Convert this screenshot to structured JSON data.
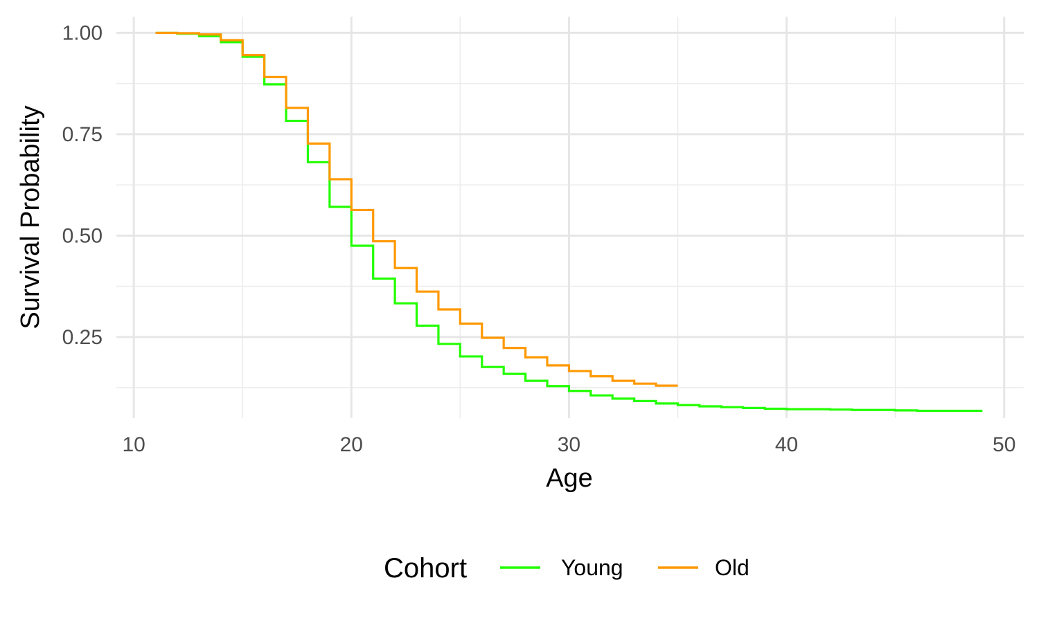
{
  "chart_data": {
    "type": "line",
    "step": true,
    "xlabel": "Age",
    "ylabel": "Survival Probability",
    "xlim": [
      11,
      49
    ],
    "ylim": [
      0.05,
      1.04
    ],
    "x_ticks": [
      10,
      20,
      30,
      40,
      50
    ],
    "x_tick_labels": [
      "10",
      "20",
      "30",
      "40",
      "50"
    ],
    "y_ticks": [
      0.25,
      0.5,
      0.75,
      1.0
    ],
    "y_tick_labels": [
      "0.25",
      "0.50",
      "0.75",
      "1.00"
    ],
    "grid": true,
    "legend": {
      "title": "Cohort",
      "position": "bottom",
      "entries": [
        "Young",
        "Old"
      ]
    },
    "series": [
      {
        "name": "Young",
        "color": "#22ff00",
        "x": [
          11,
          12,
          13,
          14,
          15,
          16,
          17,
          18,
          19,
          20,
          21,
          22,
          23,
          24,
          25,
          26,
          27,
          28,
          29,
          30,
          31,
          32,
          33,
          34,
          35,
          36,
          37,
          38,
          39,
          40,
          41,
          42,
          43,
          44,
          45,
          46,
          47,
          48,
          49
        ],
        "y": [
          1.0,
          0.998,
          0.992,
          0.977,
          0.941,
          0.873,
          0.783,
          0.681,
          0.571,
          0.475,
          0.394,
          0.333,
          0.278,
          0.233,
          0.202,
          0.176,
          0.159,
          0.142,
          0.129,
          0.117,
          0.106,
          0.098,
          0.092,
          0.086,
          0.082,
          0.079,
          0.077,
          0.075,
          0.073,
          0.072,
          0.072,
          0.071,
          0.07,
          0.07,
          0.069,
          0.068,
          0.068,
          0.068,
          0.068
        ]
      },
      {
        "name": "Old",
        "color": "#ff9900",
        "x": [
          11,
          12,
          13,
          14,
          15,
          16,
          17,
          18,
          19,
          20,
          21,
          22,
          23,
          24,
          25,
          26,
          27,
          28,
          29,
          30,
          31,
          32,
          33,
          34,
          35
        ],
        "y": [
          1.0,
          0.999,
          0.996,
          0.982,
          0.945,
          0.891,
          0.815,
          0.727,
          0.639,
          0.563,
          0.486,
          0.42,
          0.362,
          0.318,
          0.283,
          0.248,
          0.223,
          0.2,
          0.18,
          0.166,
          0.153,
          0.142,
          0.135,
          0.13,
          0.13
        ]
      }
    ]
  }
}
